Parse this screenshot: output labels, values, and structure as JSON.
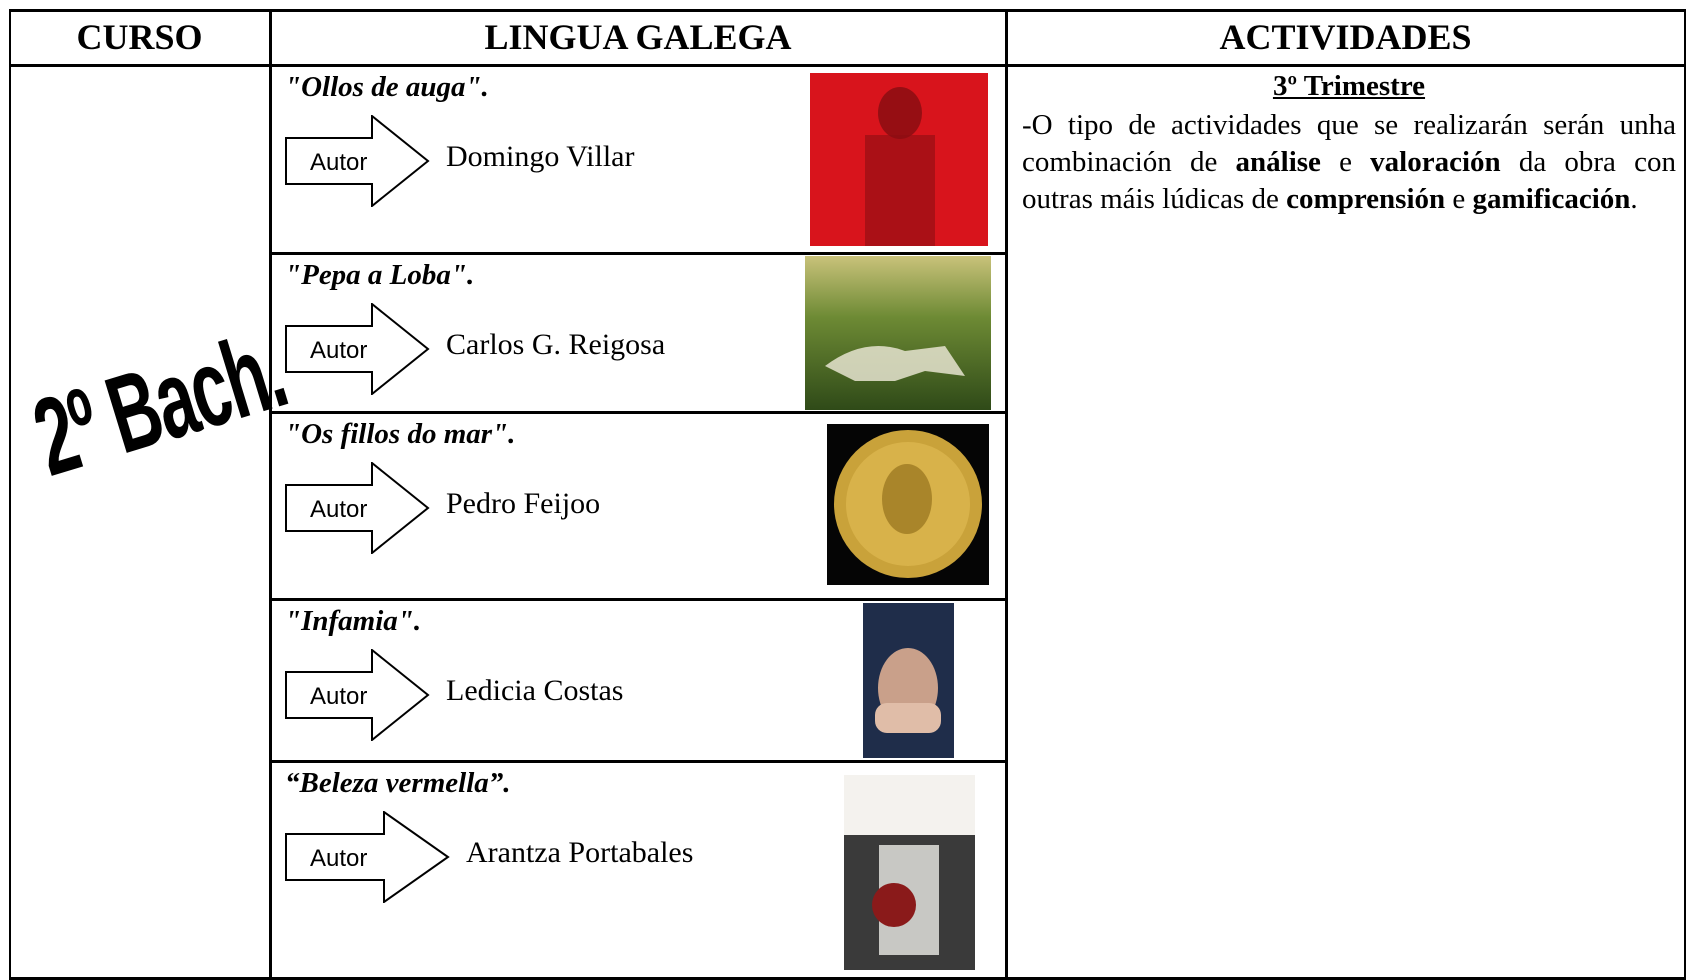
{
  "header": {
    "columns": [
      "CURSO",
      "LINGUA GALEGA",
      "ACTIVIDADES"
    ]
  },
  "course": "2º Bach.",
  "books": [
    {
      "title": "\"Ollos de auga\".",
      "arrow_label": "Autor",
      "author": "Domingo Villar"
    },
    {
      "title": "\"Pepa a Loba\".",
      "arrow_label": "Autor",
      "author": "Carlos G. Reigosa"
    },
    {
      "title": "\"Os fillos do mar\".",
      "arrow_label": "Autor",
      "author": "Pedro Feijoo"
    },
    {
      "title": "\"Infamia\".",
      "arrow_label": "Autor",
      "author": "Ledicia Costas"
    },
    {
      "title": "“Beleza vermella”.",
      "arrow_label": "Autor",
      "author": "Arantza Portabales"
    }
  ],
  "activities": {
    "heading": "3º Trimestre",
    "paragraph": [
      "-O tipo de actividades que se realizarán serán unha combinación de ",
      "análise",
      " e ",
      "valoración",
      " da obra con outras máis lúdicas de ",
      "comprensión",
      " e ",
      "gamificación",
      "."
    ]
  }
}
